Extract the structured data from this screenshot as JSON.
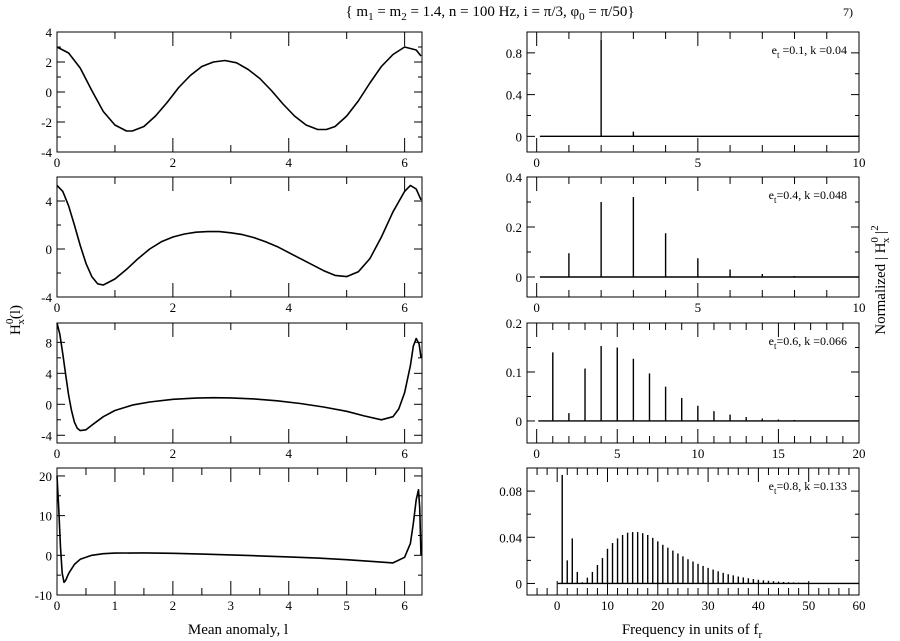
{
  "figure": {
    "title": "{ m1 = m2 = 1.4, n = 100 Hz, i = π/3, φ0 = π/50}",
    "figure_number": "7)",
    "left_ylabel": "H0x(l)",
    "right_ylabel": "Normalized | H0x |2",
    "left_xlabel": "Mean anomaly, l",
    "right_xlabel": "Frequency in units of fr"
  },
  "chart_data": [
    {
      "type": "line",
      "id": "ts-1",
      "row": 0,
      "side": "left",
      "x": [
        0,
        0.2,
        0.4,
        0.6,
        0.8,
        1.0,
        1.2,
        1.3,
        1.5,
        1.7,
        1.9,
        2.1,
        2.3,
        2.5,
        2.7,
        2.9,
        3.1,
        3.3,
        3.5,
        3.7,
        3.9,
        4.1,
        4.3,
        4.5,
        4.65,
        4.8,
        5.0,
        5.2,
        5.4,
        5.6,
        5.8,
        6.0,
        6.2,
        6.283
      ],
      "y": [
        3.0,
        2.6,
        1.6,
        0.1,
        -1.3,
        -2.2,
        -2.6,
        -2.6,
        -2.3,
        -1.6,
        -0.7,
        0.3,
        1.1,
        1.7,
        2.0,
        2.1,
        1.95,
        1.5,
        0.9,
        0.1,
        -0.8,
        -1.6,
        -2.2,
        -2.5,
        -2.5,
        -2.3,
        -1.6,
        -0.6,
        0.6,
        1.7,
        2.5,
        3.0,
        2.8,
        2.4
      ],
      "xlim": [
        0,
        6.3
      ],
      "ylim": [
        -4,
        4
      ],
      "xticks": [
        0,
        2,
        4,
        6
      ],
      "xtick_labels": [
        "0",
        "2",
        "4",
        "6"
      ],
      "yticks": [
        -4,
        -2,
        0,
        2,
        4
      ],
      "ytick_labels": [
        "-4",
        "-2",
        "0",
        "2",
        "4"
      ]
    },
    {
      "type": "bar",
      "id": "sp-1",
      "row": 0,
      "side": "right",
      "annotation": "et =0.1, k =0.04",
      "x": [
        1,
        2,
        3,
        4
      ],
      "values": [
        0.002,
        0.93,
        0.045,
        0.003
      ],
      "baseline_start": 0.1,
      "xlim": [
        -0.3,
        10
      ],
      "ylim": [
        -0.15,
        1.0
      ],
      "xticks": [
        0,
        5,
        10
      ],
      "xtick_labels": [
        "0",
        "5",
        "10"
      ],
      "yticks": [
        0,
        0.4,
        0.8
      ],
      "ytick_labels": [
        "0",
        "0.4",
        "0.8"
      ]
    },
    {
      "type": "line",
      "id": "ts-2",
      "row": 1,
      "side": "left",
      "x": [
        0,
        0.1,
        0.2,
        0.3,
        0.4,
        0.5,
        0.6,
        0.7,
        0.8,
        1.0,
        1.2,
        1.4,
        1.6,
        1.8,
        2.0,
        2.2,
        2.4,
        2.6,
        2.8,
        3.0,
        3.2,
        3.4,
        3.6,
        3.8,
        4.0,
        4.2,
        4.4,
        4.6,
        4.8,
        5.0,
        5.2,
        5.4,
        5.6,
        5.8,
        6.0,
        6.1,
        6.2,
        6.283
      ],
      "y": [
        5.3,
        4.8,
        3.6,
        2.0,
        0.3,
        -1.2,
        -2.3,
        -2.9,
        -3.0,
        -2.5,
        -1.7,
        -0.8,
        0.0,
        0.6,
        1.0,
        1.25,
        1.4,
        1.45,
        1.45,
        1.35,
        1.2,
        0.95,
        0.6,
        0.2,
        -0.3,
        -0.8,
        -1.3,
        -1.8,
        -2.2,
        -2.3,
        -1.9,
        -0.8,
        1.0,
        3.1,
        4.8,
        5.3,
        5.0,
        4.1
      ],
      "xlim": [
        0,
        6.3
      ],
      "ylim": [
        -4,
        6
      ],
      "xticks": [
        0,
        2,
        4,
        6
      ],
      "xtick_labels": [
        "0",
        "2",
        "4",
        "6"
      ],
      "yticks": [
        -4,
        0,
        4
      ],
      "ytick_labels": [
        "-4",
        "0",
        "4"
      ]
    },
    {
      "type": "bar",
      "id": "sp-2",
      "row": 1,
      "side": "right",
      "annotation": "et=0.4, k =0.048",
      "x": [
        1,
        2,
        3,
        4,
        5,
        6,
        7,
        8
      ],
      "values": [
        0.095,
        0.3,
        0.32,
        0.175,
        0.075,
        0.03,
        0.012,
        0.004
      ],
      "baseline_start": 0.1,
      "xlim": [
        -0.3,
        10
      ],
      "ylim": [
        -0.08,
        0.4
      ],
      "xticks": [
        0,
        5,
        10
      ],
      "xtick_labels": [
        "0",
        "5",
        "10"
      ],
      "yticks": [
        0,
        0.2,
        0.4
      ],
      "ytick_labels": [
        "0",
        "0.2",
        "0.4"
      ]
    },
    {
      "type": "line",
      "id": "ts-3",
      "row": 2,
      "side": "left",
      "x": [
        0,
        0.05,
        0.1,
        0.15,
        0.2,
        0.25,
        0.3,
        0.35,
        0.4,
        0.5,
        0.6,
        0.8,
        1.0,
        1.3,
        1.6,
        2.0,
        2.4,
        2.7,
        3.0,
        3.4,
        3.8,
        4.2,
        4.6,
        5.0,
        5.3,
        5.6,
        5.8,
        5.9,
        6.0,
        6.1,
        6.15,
        6.2,
        6.25,
        6.283
      ],
      "y": [
        10.5,
        9.0,
        6.5,
        3.8,
        1.2,
        -0.8,
        -2.3,
        -3.1,
        -3.4,
        -3.3,
        -2.7,
        -1.6,
        -0.8,
        -0.1,
        0.3,
        0.65,
        0.8,
        0.85,
        0.82,
        0.7,
        0.45,
        0.1,
        -0.35,
        -0.9,
        -1.5,
        -2.0,
        -1.6,
        -0.6,
        1.5,
        5.0,
        7.5,
        8.5,
        7.8,
        6.0
      ],
      "xlim": [
        0,
        6.3
      ],
      "ylim": [
        -5,
        10.5
      ],
      "xticks": [
        0,
        2,
        4,
        6
      ],
      "xtick_labels": [
        "0",
        "2",
        "4",
        "6"
      ],
      "yticks": [
        -4,
        0,
        4,
        8
      ],
      "ytick_labels": [
        "-4",
        "0",
        "4",
        "8"
      ]
    },
    {
      "type": "bar",
      "id": "sp-3",
      "row": 2,
      "side": "right",
      "annotation": "et=0.6, k =0.066",
      "x": [
        1,
        2,
        3,
        4,
        5,
        6,
        7,
        8,
        9,
        10,
        11,
        12,
        13,
        14,
        15,
        16,
        17
      ],
      "values": [
        0.14,
        0.016,
        0.107,
        0.153,
        0.15,
        0.127,
        0.097,
        0.07,
        0.047,
        0.031,
        0.02,
        0.013,
        0.008,
        0.005,
        0.003,
        0.002,
        0.001
      ],
      "baseline_start": 0.1,
      "xlim": [
        -0.6,
        20
      ],
      "ylim": [
        -0.045,
        0.2
      ],
      "xticks": [
        0,
        5,
        10,
        15,
        20
      ],
      "xtick_labels": [
        "0",
        "5",
        "10",
        "15",
        "20"
      ],
      "yticks": [
        0,
        0.1,
        0.2
      ],
      "ytick_labels": [
        "0",
        "0.1",
        "0.2"
      ]
    },
    {
      "type": "line",
      "id": "ts-4",
      "row": 3,
      "side": "left",
      "x": [
        0,
        0.03,
        0.06,
        0.09,
        0.12,
        0.15,
        0.2,
        0.3,
        0.4,
        0.6,
        0.8,
        1.0,
        1.5,
        2.0,
        2.5,
        3.0,
        3.5,
        4.0,
        4.5,
        5.0,
        5.5,
        5.8,
        6.0,
        6.1,
        6.15,
        6.2,
        6.24,
        6.26,
        6.283
      ],
      "y": [
        20,
        12,
        2,
        -4.5,
        -6.8,
        -6.3,
        -4.6,
        -2.3,
        -1.0,
        0.0,
        0.4,
        0.55,
        0.6,
        0.5,
        0.3,
        0.1,
        -0.15,
        -0.4,
        -0.7,
        -1.1,
        -1.6,
        -1.9,
        -0.5,
        3.0,
        8.0,
        14.0,
        16.5,
        12.0,
        0.0
      ],
      "xlim": [
        0,
        6.3
      ],
      "ylim": [
        -10,
        22
      ],
      "xticks": [
        0,
        1,
        2,
        3,
        4,
        5,
        6
      ],
      "xtick_labels": [
        "0",
        "1",
        "2",
        "3",
        "4",
        "5",
        "6"
      ],
      "yticks": [
        -10,
        0,
        10,
        20
      ],
      "ytick_labels": [
        "-10",
        "0",
        "10",
        "20"
      ]
    },
    {
      "type": "bar",
      "id": "sp-4",
      "row": 3,
      "side": "right",
      "annotation": "et=0.8, k =0.133",
      "x": [
        1,
        2,
        3,
        4,
        5,
        6,
        7,
        8,
        9,
        10,
        11,
        12,
        13,
        14,
        15,
        16,
        17,
        18,
        19,
        20,
        21,
        22,
        23,
        24,
        25,
        26,
        27,
        28,
        29,
        30,
        31,
        32,
        33,
        34,
        35,
        36,
        37,
        38,
        39,
        40,
        41,
        42,
        43,
        44,
        45,
        46,
        47,
        48,
        49,
        50
      ],
      "values": [
        0.094,
        0.02,
        0.039,
        0.01,
        0.001,
        0.005,
        0.01,
        0.016,
        0.022,
        0.03,
        0.035,
        0.039,
        0.042,
        0.044,
        0.0445,
        0.0445,
        0.0435,
        0.042,
        0.0395,
        0.0365,
        0.0335,
        0.031,
        0.0285,
        0.026,
        0.0235,
        0.021,
        0.019,
        0.017,
        0.0152,
        0.0135,
        0.012,
        0.0105,
        0.0092,
        0.008,
        0.007,
        0.006,
        0.0052,
        0.0045,
        0.0038,
        0.0032,
        0.0027,
        0.0023,
        0.0019,
        0.0016,
        0.0013,
        0.0011,
        0.0009,
        0.0007,
        0.0006,
        0.0005
      ],
      "baseline_start": 0.1,
      "xlim": [
        -6,
        60
      ],
      "ylim": [
        -0.01,
        0.1
      ],
      "xticks": [
        0,
        10,
        20,
        30,
        40,
        50,
        60
      ],
      "xtick_labels": [
        "0",
        "10",
        "20",
        "30",
        "40",
        "50",
        "60"
      ],
      "yticks": [
        0,
        0.04,
        0.08
      ],
      "ytick_labels": [
        "0",
        "0.04",
        "0.08"
      ]
    }
  ]
}
